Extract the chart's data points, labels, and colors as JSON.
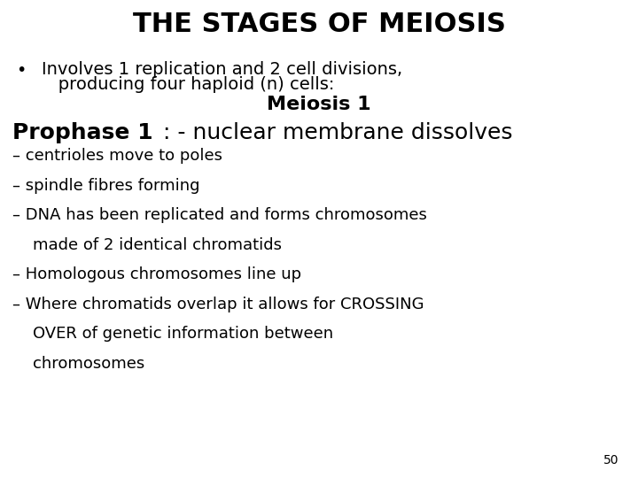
{
  "title": "THE STAGES OF MEIOSIS",
  "background_color": "#ffffff",
  "text_color": "#000000",
  "title_fontsize": 22,
  "title_fontweight": "bold",
  "bullet_char": "•",
  "bullet_line1": "Involves 1 replication and 2 cell divisions,",
  "bullet_line2": "   producing four haploid (n) cells:",
  "meiosis_header": "Meiosis 1",
  "meiosis_fontsize": 16,
  "prophase_bold": "Prophase 1",
  "prophase_rest": ": - nuclear membrane dissolves",
  "prophase_fontsize": 18,
  "body_fontsize": 13,
  "bullet_fontsize": 14,
  "bullet_points": [
    "– centrioles move to poles",
    "– spindle fibres forming",
    "– DNA has been replicated and forms chromosomes",
    "    made of 2 identical chromatids",
    "– Homologous chromosomes line up",
    "– Where chromatids overlap it allows for CROSSING",
    "    OVER of genetic information between",
    "    chromosomes"
  ],
  "page_number": "50",
  "font_family": "Arial Narrow",
  "font_family_fallback": "DejaVu Sans Condensed"
}
